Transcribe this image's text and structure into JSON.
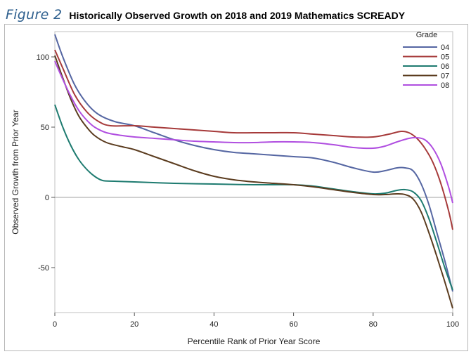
{
  "header": {
    "figure_label": "Figure 2",
    "title": "Historically Observed Growth on 2018 and 2019 Mathematics SCREADY"
  },
  "chart_data": {
    "type": "line",
    "xlabel": "Percentile Rank of Prior Year Score",
    "ylabel": "Observed Growth from Prior Year",
    "xlim": [
      0,
      100
    ],
    "ylim": [
      -82,
      118
    ],
    "x_ticks": [
      0,
      20,
      40,
      60,
      80,
      100
    ],
    "y_ticks": [
      -50,
      0,
      50,
      100
    ],
    "reference_line_y": 0,
    "grid": false,
    "legend": {
      "title": "Grade",
      "placement": "top-right inside"
    },
    "series": [
      {
        "name": "04",
        "color": "#5566a2",
        "points": [
          [
            0,
            116
          ],
          [
            2,
            100
          ],
          [
            5,
            80
          ],
          [
            8,
            67
          ],
          [
            11,
            59
          ],
          [
            15,
            54
          ],
          [
            20,
            51
          ],
          [
            25,
            46
          ],
          [
            30,
            41
          ],
          [
            35,
            37
          ],
          [
            40,
            34
          ],
          [
            45,
            32
          ],
          [
            50,
            31
          ],
          [
            55,
            30
          ],
          [
            60,
            29
          ],
          [
            65,
            28
          ],
          [
            70,
            25
          ],
          [
            75,
            21
          ],
          [
            80,
            18
          ],
          [
            83,
            19
          ],
          [
            86,
            21
          ],
          [
            88,
            21
          ],
          [
            90,
            19
          ],
          [
            92,
            10
          ],
          [
            94,
            -5
          ],
          [
            96,
            -25
          ],
          [
            98,
            -45
          ],
          [
            100,
            -67
          ]
        ]
      },
      {
        "name": "05",
        "color": "#a63a3a",
        "points": [
          [
            0,
            105
          ],
          [
            2,
            92
          ],
          [
            5,
            73
          ],
          [
            8,
            61
          ],
          [
            11,
            54
          ],
          [
            14,
            51
          ],
          [
            20,
            51
          ],
          [
            25,
            50
          ],
          [
            30,
            49
          ],
          [
            35,
            48
          ],
          [
            40,
            47
          ],
          [
            45,
            46
          ],
          [
            50,
            46
          ],
          [
            55,
            46
          ],
          [
            60,
            46
          ],
          [
            65,
            45
          ],
          [
            70,
            44
          ],
          [
            75,
            43
          ],
          [
            80,
            43
          ],
          [
            84,
            45
          ],
          [
            87,
            47
          ],
          [
            89,
            46
          ],
          [
            91,
            42
          ],
          [
            93,
            35
          ],
          [
            95,
            25
          ],
          [
            97,
            10
          ],
          [
            99,
            -10
          ],
          [
            100,
            -23
          ]
        ]
      },
      {
        "name": "06",
        "color": "#1e7b70",
        "points": [
          [
            0,
            66
          ],
          [
            2,
            50
          ],
          [
            4,
            37
          ],
          [
            6,
            27
          ],
          [
            8,
            20
          ],
          [
            10,
            15
          ],
          [
            12,
            12
          ],
          [
            15,
            11.5
          ],
          [
            20,
            11
          ],
          [
            30,
            10
          ],
          [
            40,
            9.5
          ],
          [
            50,
            9
          ],
          [
            60,
            9
          ],
          [
            65,
            8
          ],
          [
            70,
            6
          ],
          [
            75,
            4
          ],
          [
            80,
            2.5
          ],
          [
            83,
            3
          ],
          [
            86,
            5
          ],
          [
            88,
            5.5
          ],
          [
            90,
            4
          ],
          [
            92,
            -2
          ],
          [
            94,
            -15
          ],
          [
            96,
            -32
          ],
          [
            98,
            -50
          ],
          [
            100,
            -66
          ]
        ]
      },
      {
        "name": "07",
        "color": "#5b3c1f",
        "points": [
          [
            0,
            101
          ],
          [
            2,
            85
          ],
          [
            4,
            70
          ],
          [
            6,
            58
          ],
          [
            8,
            50
          ],
          [
            10,
            44
          ],
          [
            13,
            39
          ],
          [
            17,
            36
          ],
          [
            20,
            34
          ],
          [
            25,
            29
          ],
          [
            30,
            24
          ],
          [
            35,
            19
          ],
          [
            40,
            15
          ],
          [
            45,
            12.5
          ],
          [
            50,
            11
          ],
          [
            55,
            10
          ],
          [
            60,
            9
          ],
          [
            65,
            7.5
          ],
          [
            70,
            5.5
          ],
          [
            75,
            3.5
          ],
          [
            80,
            2
          ],
          [
            83,
            2
          ],
          [
            86,
            2.5
          ],
          [
            88,
            2
          ],
          [
            90,
            -1
          ],
          [
            92,
            -10
          ],
          [
            94,
            -25
          ],
          [
            96,
            -42
          ],
          [
            98,
            -60
          ],
          [
            100,
            -79
          ]
        ]
      },
      {
        "name": "08",
        "color": "#b04ee0",
        "points": [
          [
            0,
            97
          ],
          [
            2,
            84
          ],
          [
            4,
            72
          ],
          [
            6,
            62
          ],
          [
            8,
            55
          ],
          [
            10,
            50
          ],
          [
            13,
            46
          ],
          [
            17,
            44
          ],
          [
            20,
            43
          ],
          [
            25,
            42
          ],
          [
            30,
            41
          ],
          [
            35,
            40
          ],
          [
            40,
            39.5
          ],
          [
            45,
            39
          ],
          [
            50,
            39
          ],
          [
            55,
            39.5
          ],
          [
            60,
            39.5
          ],
          [
            65,
            39
          ],
          [
            70,
            37.5
          ],
          [
            75,
            35.5
          ],
          [
            80,
            35
          ],
          [
            83,
            36.5
          ],
          [
            86,
            39.5
          ],
          [
            89,
            42
          ],
          [
            91,
            42.5
          ],
          [
            93,
            41
          ],
          [
            95,
            35
          ],
          [
            97,
            24
          ],
          [
            99,
            7
          ],
          [
            100,
            -4
          ]
        ]
      }
    ]
  }
}
